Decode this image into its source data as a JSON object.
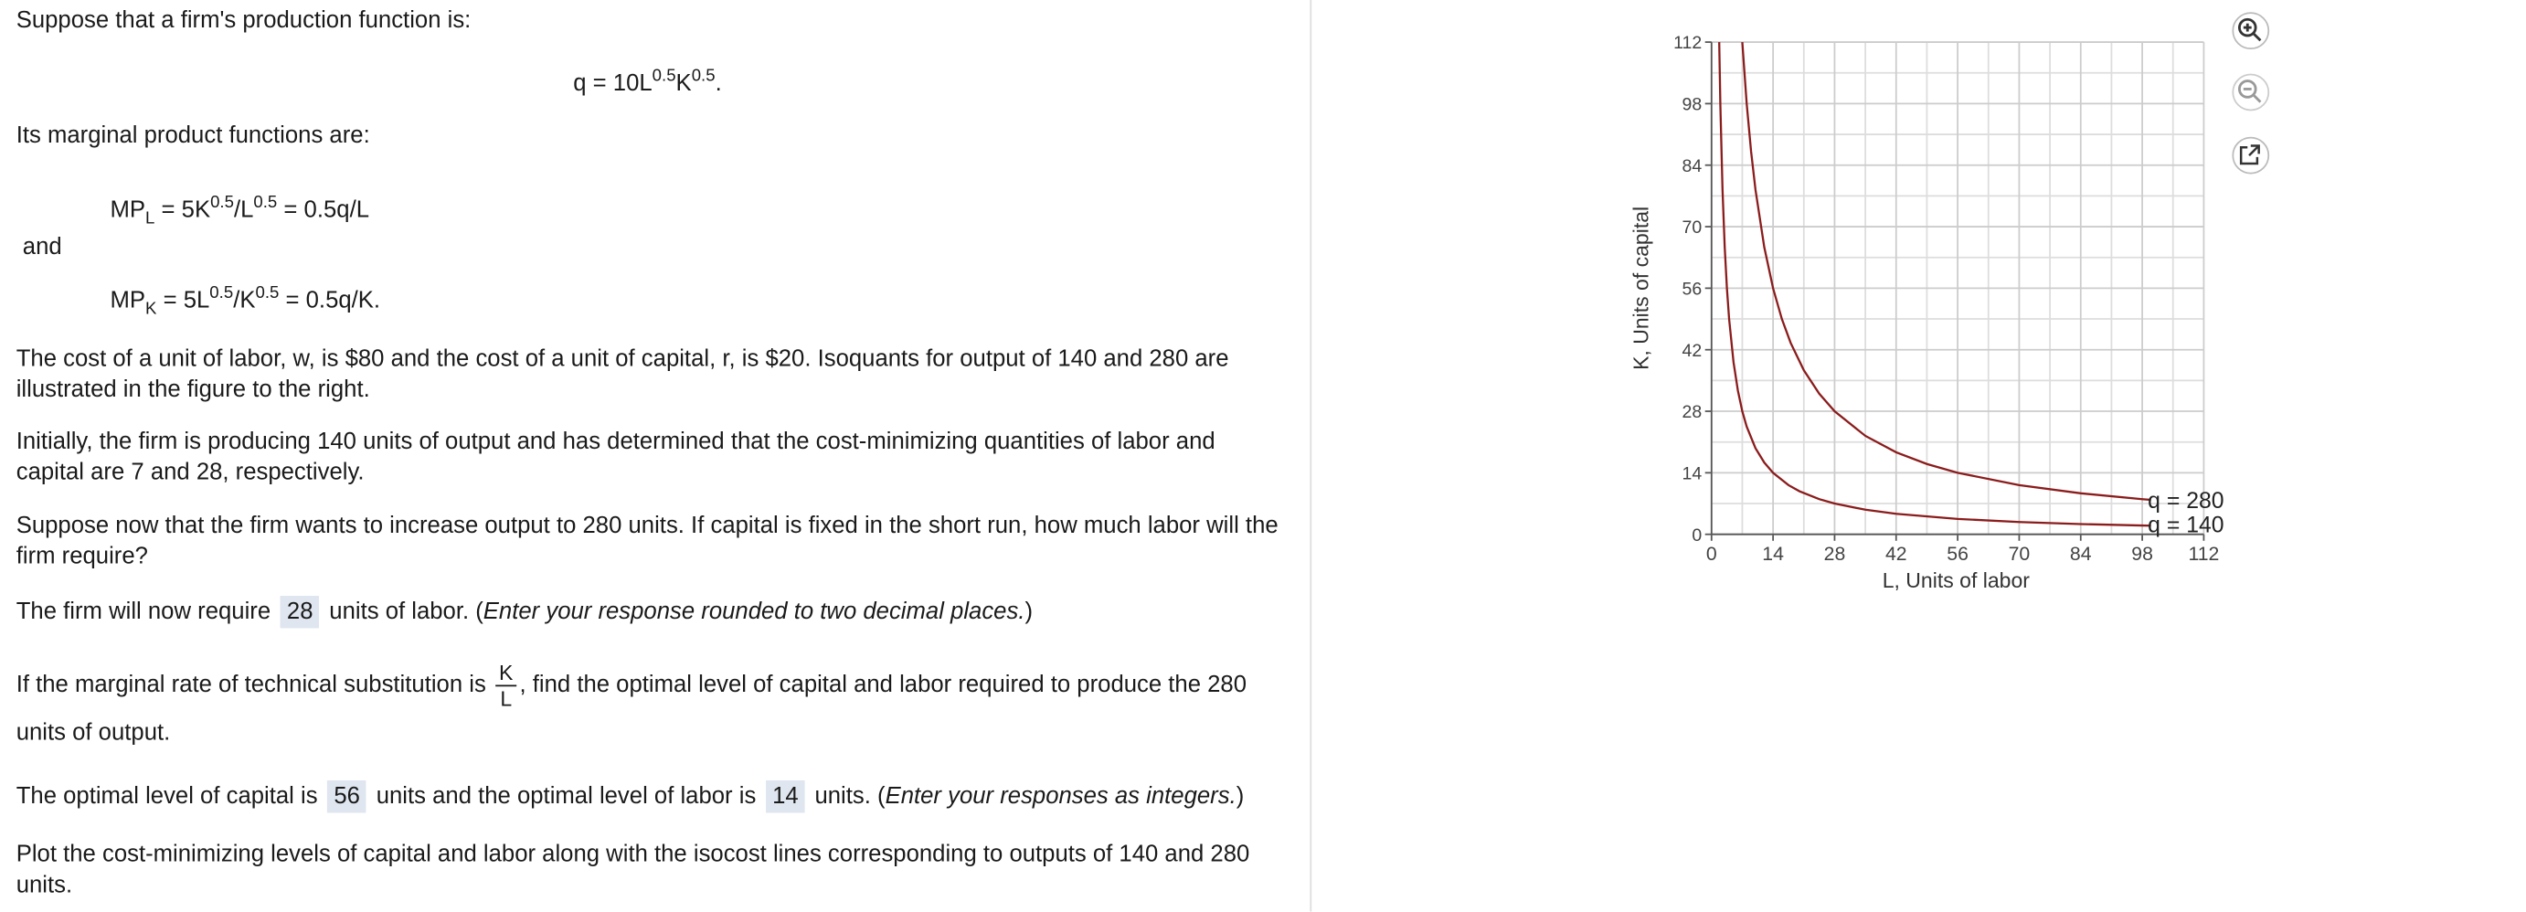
{
  "intro": "Suppose that a firm's production function is:",
  "production": [
    "q = 10L",
    "0.5",
    "K",
    "0.5",
    "."
  ],
  "mp_intro": "Its marginal product functions are:",
  "mpl": [
    "MP",
    "L",
    " = 5K",
    "0.5",
    "/L",
    "0.5",
    " = 0.5q/L"
  ],
  "and": "and",
  "mpk": [
    "MP",
    "K",
    " = 5L",
    "0.5",
    "/K",
    "0.5",
    " = 0.5q/K."
  ],
  "p_costs": "The cost of a unit of labor, w, is $80 and the cost of a unit of capital, r, is $20. Isoquants for output of 140 and 280 are illustrated in the figure to the right.",
  "p_initial": "Initially, the firm is producing 140 units of output and has determined that the cost-minimizing quantities of labor and capital are 7 and 28, respectively.",
  "p_short_run": "Suppose now that the firm wants to increase output to 280 units. If capital is fixed in the short run, how much labor will the firm require?",
  "answer1": [
    "The firm will now require",
    "28",
    "units of labor. (",
    "Enter  your response rounded to two decimal places.",
    ")"
  ],
  "mrts": [
    "If the marginal rate of technical substitution is",
    "K",
    "L",
    ", find the optimal level of capital and labor required to produce the 280 units of output."
  ],
  "answer2": [
    "The optimal level of capital is",
    "56",
    "units and the optimal level of labor is",
    "14",
    "units. (",
    "Enter your responses as  integers.",
    ")"
  ],
  "p_plot": "Plot the cost-minimizing levels of capital and labor along with the isocost lines corresponding to outputs of 140 and 280 units.",
  "chart_data": {
    "type": "line",
    "xlabel": "L, Units of labor",
    "ylabel": "K, Units of capital",
    "xlim": [
      0,
      112
    ],
    "ylim": [
      0,
      112
    ],
    "xticks": [
      0,
      14,
      28,
      42,
      56,
      70,
      84,
      98,
      112
    ],
    "yticks": [
      0,
      14,
      28,
      42,
      56,
      70,
      84,
      98,
      112
    ],
    "grid": true,
    "series": [
      {
        "name": "q = 280",
        "color": "#8b1c1c",
        "x": [
          7,
          8,
          9,
          10,
          12,
          14,
          16,
          18,
          21,
          24.5,
          28,
          35,
          42,
          49,
          56,
          70,
          84,
          98,
          100
        ],
        "values": [
          112,
          98,
          87.11,
          78.4,
          65.33,
          56,
          49,
          43.56,
          37.33,
          32,
          28,
          22.4,
          18.67,
          16,
          14,
          11.2,
          9.33,
          8,
          7.84
        ]
      },
      {
        "name": "q = 140",
        "color": "#8b1c1c",
        "x": [
          1.75,
          2,
          2.5,
          3,
          3.5,
          4,
          5,
          6,
          7,
          8,
          10,
          12,
          14,
          17.5,
          20,
          24.5,
          28,
          35,
          42,
          56,
          70,
          84,
          98,
          100
        ],
        "values": [
          112,
          98,
          78.4,
          65.33,
          56,
          49,
          39.2,
          32.67,
          28,
          24.5,
          19.6,
          16.33,
          14,
          11.2,
          9.8,
          8,
          7,
          5.6,
          4.67,
          3.5,
          2.8,
          2.33,
          2,
          1.96
        ]
      }
    ]
  }
}
